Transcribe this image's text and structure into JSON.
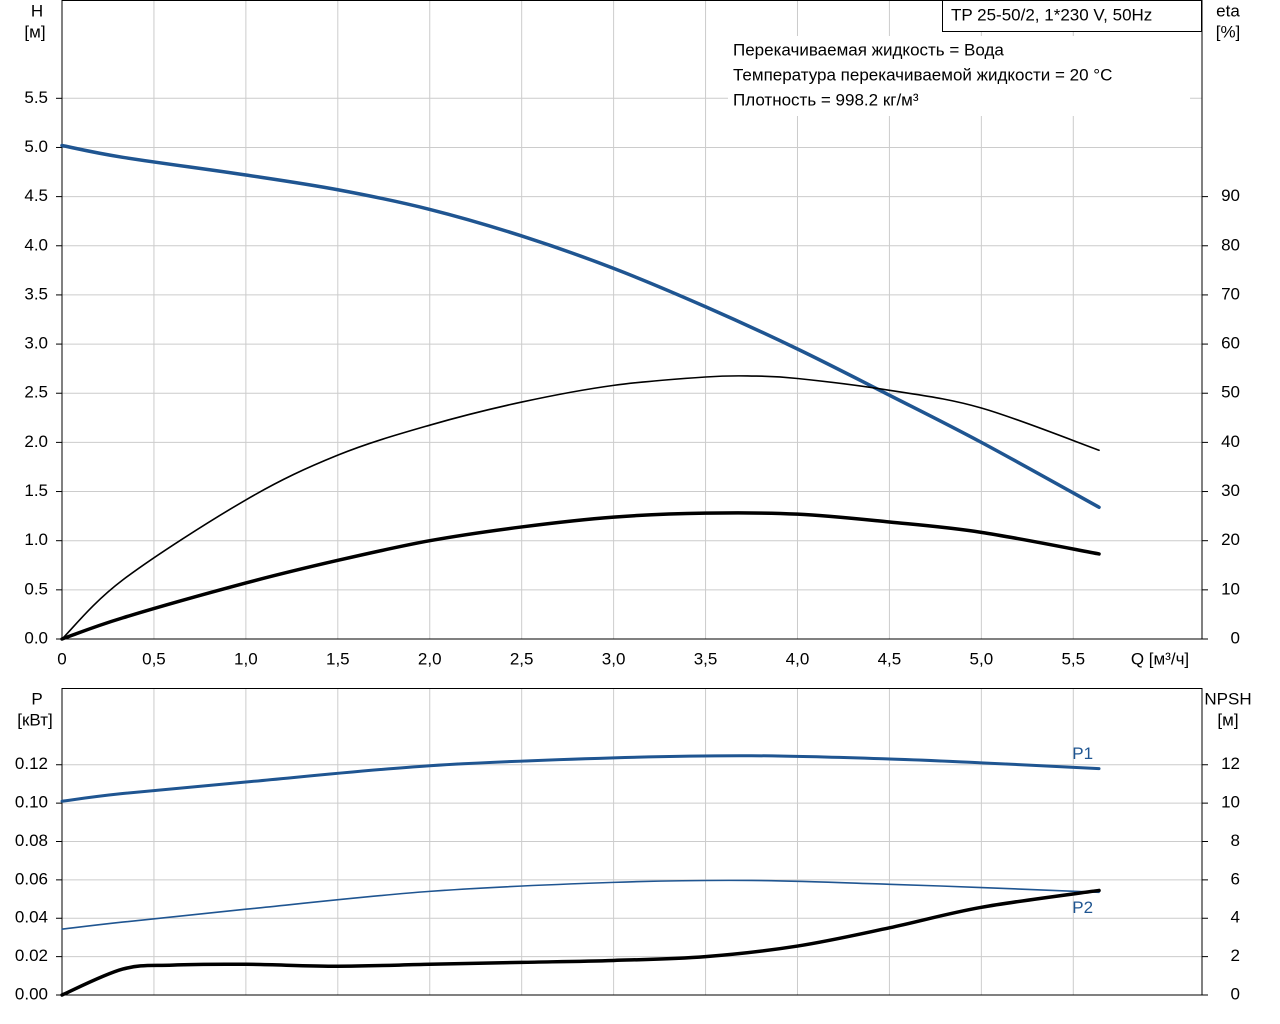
{
  "chart_data": [
    {
      "type": "line",
      "title": "TP 25-50/2, 1*230 V, 50Hz",
      "annotations": [
        "Перекачиваемая жидкость = Вода",
        "Температура перекачиваемой жидкости = 20 °C",
        "Плотность = 998.2 кг/м³"
      ],
      "x_label": "Q [м³/ч]",
      "y_label": "H",
      "y_unit": "[м]",
      "y2_label": "eta",
      "y2_unit": "[%]",
      "xlim": [
        0,
        6.2
      ],
      "xticks": [
        0,
        {
          "value": 0.5,
          "label": "0,5"
        },
        {
          "value": 1.0,
          "label": "1,0"
        },
        {
          "value": 1.5,
          "label": "1,5"
        },
        {
          "value": 2.0,
          "label": "2,0"
        },
        {
          "value": 2.5,
          "label": "2,5"
        },
        {
          "value": 3.0,
          "label": "3,0"
        },
        {
          "value": 3.5,
          "label": "3,5"
        },
        {
          "value": 4.0,
          "label": "4,0"
        },
        {
          "value": 4.5,
          "label": "4,5"
        },
        {
          "value": 5.0,
          "label": "5,0"
        },
        {
          "value": 5.5,
          "label": "5,5"
        }
      ],
      "ylim": [
        0,
        6.5
      ],
      "yticks": [
        {
          "value": 0,
          "label": "0.0"
        },
        0.5,
        {
          "value": 1,
          "label": "1.0"
        },
        1.5,
        {
          "value": 2,
          "label": "2.0"
        },
        2.5,
        {
          "value": 3,
          "label": "3.0"
        },
        3.5,
        {
          "value": 4,
          "label": "4.0"
        },
        4.5,
        {
          "value": 5,
          "label": "5.0"
        },
        5.5
      ],
      "y2lim": [
        0,
        130
      ],
      "y2ticks": [
        0,
        10,
        20,
        30,
        40,
        50,
        60,
        70,
        80,
        90
      ],
      "grid": true,
      "series": [
        {
          "color": "#1f5591",
          "line_width": 3.5,
          "x": [
            0,
            0.33,
            1,
            1.5,
            2,
            2.5,
            3,
            3.5,
            4,
            4.5,
            5,
            5.64
          ],
          "values": [
            5.02,
            4.9,
            4.72,
            4.57,
            4.37,
            4.1,
            3.77,
            3.38,
            2.95,
            2.48,
            2.0,
            1.34
          ]
        },
        {
          "color": "#000000",
          "line_width": 1.6,
          "axis": "y2",
          "x": [
            0,
            0.33,
            1,
            1.5,
            2,
            2.5,
            3,
            3.5,
            3.75,
            4,
            4.5,
            5,
            5.64
          ],
          "values": [
            0,
            12,
            28.3,
            37.4,
            43.5,
            48.2,
            51.6,
            53.3,
            53.5,
            53,
            50.6,
            47,
            38.4
          ]
        },
        {
          "color": "#000000",
          "line_width": 3.5,
          "axis": "y2",
          "x": [
            0,
            0.33,
            1,
            1.5,
            2,
            2.5,
            3,
            3.5,
            4,
            4.5,
            5,
            5.64
          ],
          "values": [
            0,
            4.3,
            11.4,
            16,
            20,
            22.8,
            24.8,
            25.6,
            25.4,
            23.8,
            21.7,
            17.3
          ]
        }
      ]
    },
    {
      "type": "line",
      "y_label": "P",
      "y_unit": "[кВт]",
      "y2_label": "NPSH",
      "y2_unit": "[м]",
      "xlim": [
        0,
        6.2
      ],
      "ylim": [
        0,
        0.16
      ],
      "yticks": [
        {
          "value": 0,
          "label": "0.00"
        },
        {
          "value": 0.02,
          "label": "0.02"
        },
        {
          "value": 0.04,
          "label": "0.04"
        },
        {
          "value": 0.06,
          "label": "0.06"
        },
        {
          "value": 0.08,
          "label": "0.08"
        },
        {
          "value": 0.1,
          "label": "0.10"
        },
        {
          "value": 0.12,
          "label": "0.12"
        }
      ],
      "y2lim": [
        0,
        16
      ],
      "y2ticks": [
        0,
        2,
        4,
        6,
        8,
        10,
        12
      ],
      "grid": true,
      "series": [
        {
          "name": "P1",
          "color": "#1f5591",
          "line_width": 3,
          "x": [
            0,
            0.33,
            1,
            2,
            3,
            3.75,
            4.5,
            5,
            5.64
          ],
          "values": [
            0.101,
            0.105,
            0.111,
            0.1195,
            0.1236,
            0.1247,
            0.123,
            0.121,
            0.118
          ]
        },
        {
          "name": "P2",
          "color": "#1f5591",
          "line_width": 1.6,
          "x": [
            0,
            0.33,
            1,
            2,
            3,
            3.75,
            4.5,
            5,
            5.64
          ],
          "values": [
            0.0343,
            0.038,
            0.0447,
            0.054,
            0.0587,
            0.0597,
            0.0577,
            0.056,
            0.0535
          ]
        },
        {
          "color": "#000000",
          "line_width": 3.5,
          "axis": "y2",
          "x": [
            0,
            0.33,
            0.6,
            1,
            1.5,
            2,
            2.5,
            3,
            3.5,
            4,
            4.5,
            5,
            5.64
          ],
          "values": [
            0,
            1.35,
            1.56,
            1.6,
            1.5,
            1.6,
            1.7,
            1.8,
            2.0,
            2.55,
            3.5,
            4.57,
            5.45
          ]
        }
      ]
    }
  ]
}
